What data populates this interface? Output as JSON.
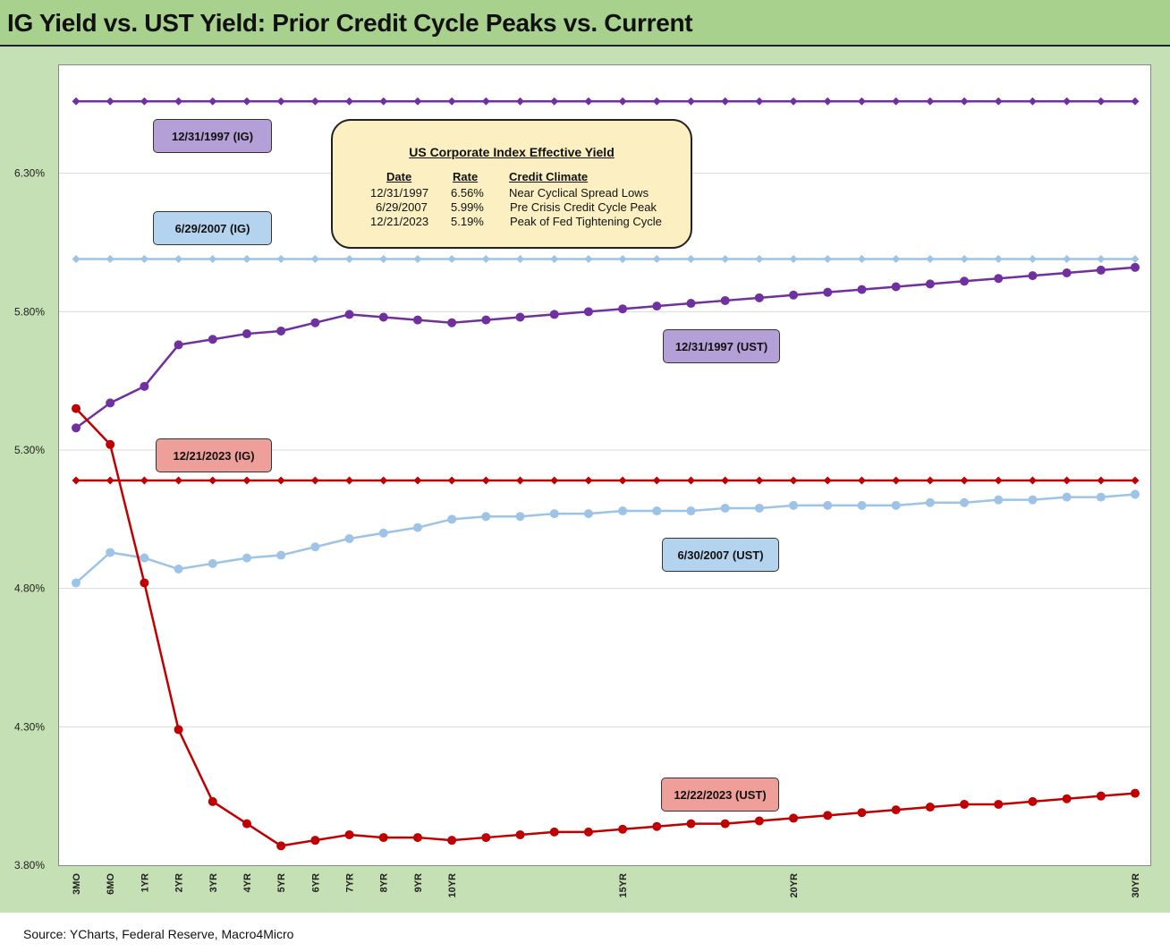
{
  "title": "IG Yield vs. UST Yield: Prior Credit Cycle Peaks vs. Current",
  "source": "Source: YCharts, Federal Reserve, Macro4Micro",
  "info_box": {
    "title": "US Corporate Index Effective Yield",
    "headers": [
      "Date",
      "Rate",
      "Credit Climate"
    ],
    "rows": [
      [
        "12/31/1997",
        "6.56%",
        "Near Cyclical Spread Lows"
      ],
      [
        "6/29/2007",
        "5.99%",
        "Pre Crisis Credit Cycle Peak"
      ],
      [
        "12/21/2023",
        "5.19%",
        "Peak of Fed Tightening Cycle"
      ]
    ]
  },
  "chart_data": {
    "type": "line",
    "x": [
      "3MO",
      "6MO",
      "1YR",
      "2YR",
      "3YR",
      "4YR",
      "5YR",
      "6YR",
      "7YR",
      "8YR",
      "9YR",
      "10YR",
      "11YR",
      "12YR",
      "13YR",
      "14YR",
      "15YR",
      "16YR",
      "17YR",
      "18YR",
      "19YR",
      "20YR",
      "21YR",
      "22YR",
      "23YR",
      "24YR",
      "25YR",
      "26YR",
      "27YR",
      "28YR",
      "29YR",
      "30YR"
    ],
    "x_tick_labels": [
      "3MO",
      "6MO",
      "1YR",
      "2YR",
      "3YR",
      "4YR",
      "5YR",
      "6YR",
      "7YR",
      "8YR",
      "9YR",
      "10YR",
      "",
      "",
      "",
      "",
      "15YR",
      "",
      "",
      "",
      "",
      "20YR",
      "",
      "",
      "",
      "",
      "",
      "",
      "",
      "",
      "",
      "30YR"
    ],
    "yticks": [
      3.8,
      4.3,
      4.8,
      5.3,
      5.8,
      6.3
    ],
    "ytick_labels": [
      "3.80%",
      "4.30%",
      "4.80%",
      "5.30%",
      "5.80%",
      "6.30%"
    ],
    "ylim": [
      3.8,
      6.69
    ],
    "grid": true,
    "series": [
      {
        "name": "12/31/1997 (IG)",
        "color": "#7030a0",
        "marker": "diamond",
        "values": [
          6.56,
          6.56,
          6.56,
          6.56,
          6.56,
          6.56,
          6.56,
          6.56,
          6.56,
          6.56,
          6.56,
          6.56,
          6.56,
          6.56,
          6.56,
          6.56,
          6.56,
          6.56,
          6.56,
          6.56,
          6.56,
          6.56,
          6.56,
          6.56,
          6.56,
          6.56,
          6.56,
          6.56,
          6.56,
          6.56,
          6.56,
          6.56
        ]
      },
      {
        "name": "6/29/2007 (IG)",
        "color": "#9dc3e6",
        "marker": "diamond",
        "values": [
          5.99,
          5.99,
          5.99,
          5.99,
          5.99,
          5.99,
          5.99,
          5.99,
          5.99,
          5.99,
          5.99,
          5.99,
          5.99,
          5.99,
          5.99,
          5.99,
          5.99,
          5.99,
          5.99,
          5.99,
          5.99,
          5.99,
          5.99,
          5.99,
          5.99,
          5.99,
          5.99,
          5.99,
          5.99,
          5.99,
          5.99,
          5.99
        ]
      },
      {
        "name": "12/21/2023 (IG)",
        "color": "#c00000",
        "marker": "diamond",
        "values": [
          5.19,
          5.19,
          5.19,
          5.19,
          5.19,
          5.19,
          5.19,
          5.19,
          5.19,
          5.19,
          5.19,
          5.19,
          5.19,
          5.19,
          5.19,
          5.19,
          5.19,
          5.19,
          5.19,
          5.19,
          5.19,
          5.19,
          5.19,
          5.19,
          5.19,
          5.19,
          5.19,
          5.19,
          5.19,
          5.19,
          5.19,
          5.19
        ]
      },
      {
        "name": "12/31/1997 (UST)",
        "color": "#7030a0",
        "marker": "circle",
        "values": [
          5.38,
          5.47,
          5.53,
          5.68,
          5.7,
          5.72,
          5.73,
          5.76,
          5.79,
          5.78,
          5.77,
          5.76,
          5.77,
          5.78,
          5.79,
          5.8,
          5.81,
          5.82,
          5.83,
          5.84,
          5.85,
          5.86,
          5.87,
          5.88,
          5.89,
          5.9,
          5.91,
          5.92,
          5.93,
          5.94,
          5.95,
          5.96
        ]
      },
      {
        "name": "6/30/2007 (UST)",
        "color": "#9dc3e6",
        "marker": "circle",
        "values": [
          4.82,
          4.93,
          4.91,
          4.87,
          4.89,
          4.91,
          4.92,
          4.95,
          4.98,
          5.0,
          5.02,
          5.05,
          5.06,
          5.06,
          5.07,
          5.07,
          5.08,
          5.08,
          5.08,
          5.09,
          5.09,
          5.1,
          5.1,
          5.1,
          5.1,
          5.11,
          5.11,
          5.12,
          5.12,
          5.13,
          5.13,
          5.14
        ]
      },
      {
        "name": "12/22/2023 (UST)",
        "color": "#c00000",
        "marker": "circle",
        "values": [
          5.45,
          5.32,
          4.82,
          4.29,
          4.03,
          3.95,
          3.87,
          3.89,
          3.91,
          3.9,
          3.9,
          3.89,
          3.9,
          3.91,
          3.92,
          3.92,
          3.93,
          3.94,
          3.95,
          3.95,
          3.96,
          3.97,
          3.98,
          3.99,
          4.0,
          4.01,
          4.02,
          4.02,
          4.03,
          4.04,
          4.05,
          4.06
        ]
      }
    ]
  }
}
